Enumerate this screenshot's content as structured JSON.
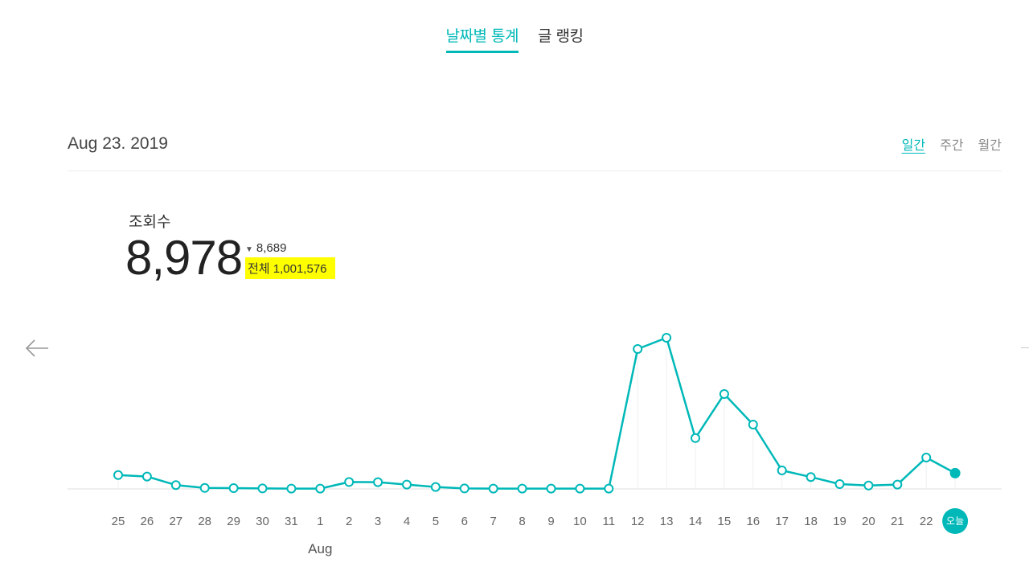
{
  "tabs": [
    {
      "label": "날짜별 통계",
      "active": true
    },
    {
      "label": "글 랭킹",
      "active": false
    }
  ],
  "header": {
    "date": "Aug 23. 2019",
    "periods": [
      {
        "label": "일간",
        "active": true
      },
      {
        "label": "주간",
        "active": false
      },
      {
        "label": "월간",
        "active": false
      }
    ]
  },
  "metric": {
    "title": "조회수",
    "value": "8,978",
    "diff": "8,689",
    "diff_direction": "down",
    "total": "전체 1,001,576"
  },
  "icons": {
    "prev": "arrow-left-icon",
    "diff": "triangle-down-icon"
  },
  "colors": {
    "accent": "#00b8b8",
    "highlight": "#ffff00"
  },
  "chart_data": {
    "type": "line",
    "title": "",
    "xlabel": "",
    "ylabel": "",
    "month_label": "Aug",
    "month_label_at": "1",
    "categories": [
      "25",
      "26",
      "27",
      "28",
      "29",
      "30",
      "31",
      "1",
      "2",
      "3",
      "4",
      "5",
      "6",
      "7",
      "8",
      "9",
      "10",
      "11",
      "12",
      "13",
      "14",
      "15",
      "16",
      "17",
      "18",
      "19",
      "20",
      "21",
      "22",
      "오늘"
    ],
    "series": [
      {
        "values": [
          430,
          385,
          120,
          30,
          25,
          15,
          10,
          10,
          215,
          210,
          135,
          60,
          15,
          10,
          10,
          10,
          10,
          10,
          4350,
          4700,
          1580,
          2950,
          2000,
          575,
          370,
          150,
          105,
          135,
          975,
          490
        ]
      }
    ],
    "ylim": [
      0,
      5000
    ],
    "grid": false,
    "highlight_last": true
  }
}
